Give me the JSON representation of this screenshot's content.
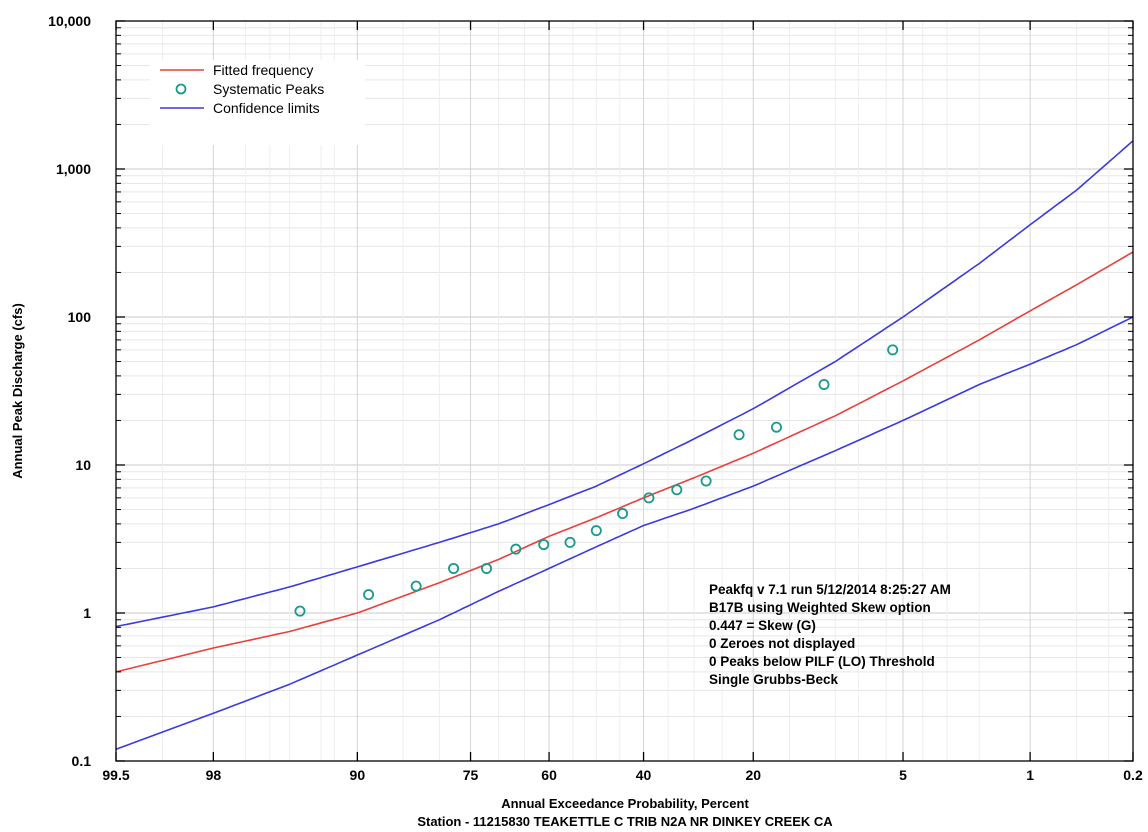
{
  "chart_data": {
    "type": "scatter",
    "x_scale": "normal-probability-exceedance",
    "y_scale": "log",
    "xlabel": "Annual Exceedance Probability, Percent",
    "xlabel2": "Station - 11215830  TEAKETTLE C TRIB N2A NR DINKEY CREEK CA",
    "ylabel": "Annual Peak Discharge (cfs)",
    "xlim": [
      99.5,
      0.2
    ],
    "ylim": [
      0.1,
      10000
    ],
    "x_ticks": [
      {
        "value": 99.5,
        "label": "99.5"
      },
      {
        "value": 98,
        "label": "98"
      },
      {
        "value": 90,
        "label": "90"
      },
      {
        "value": 75,
        "label": "75"
      },
      {
        "value": 60,
        "label": "60"
      },
      {
        "value": 40,
        "label": "40"
      },
      {
        "value": 20,
        "label": "20"
      },
      {
        "value": 5,
        "label": "5"
      },
      {
        "value": 1,
        "label": "1"
      },
      {
        "value": 0.2,
        "label": "0.2"
      }
    ],
    "y_ticks": [
      {
        "value": 0.1,
        "label": "0.1"
      },
      {
        "value": 1,
        "label": "1"
      },
      {
        "value": 10,
        "label": "10"
      },
      {
        "value": 100,
        "label": "100"
      },
      {
        "value": 1000,
        "label": "1,000"
      },
      {
        "value": 10000,
        "label": "10,000"
      }
    ],
    "grid": true,
    "legend_position": "top-left",
    "legend": [
      {
        "label": "Fitted frequency",
        "kind": "line",
        "color": "#e8403a"
      },
      {
        "label": "Systematic Peaks",
        "kind": "marker",
        "color": "#1a9a8a"
      },
      {
        "label": "Confidence limits",
        "kind": "line",
        "color": "#3a3ae0"
      }
    ],
    "series": [
      {
        "name": "Fitted frequency",
        "kind": "line",
        "color": "#e8403a",
        "x": [
          99.5,
          98,
          95,
          90,
          80,
          70,
          60,
          50,
          40,
          30,
          20,
          10,
          5,
          2,
          1,
          0.5,
          0.2
        ],
        "y": [
          0.4,
          0.58,
          0.75,
          1.0,
          1.6,
          2.3,
          3.3,
          4.4,
          6.0,
          8.2,
          12.0,
          21.5,
          37.0,
          70.0,
          110.0,
          165.0,
          275.0
        ]
      },
      {
        "name": "Confidence limits",
        "kind": "line",
        "color": "#3a3ae0",
        "x": [
          99.5,
          98,
          95,
          90,
          80,
          70,
          60,
          50,
          40,
          30,
          20,
          10,
          5,
          2,
          1,
          0.5,
          0.2
        ],
        "y": [
          0.81,
          1.1,
          1.5,
          2.05,
          3.0,
          4.0,
          5.4,
          7.2,
          10.2,
          15.0,
          24.0,
          50.0,
          100.0,
          230.0,
          420.0,
          720.0,
          1550.0
        ]
      },
      {
        "name": "Confidence limits",
        "kind": "line",
        "color": "#3a3ae0",
        "x": [
          99.5,
          98,
          95,
          90,
          80,
          70,
          60,
          50,
          40,
          30,
          20,
          10,
          5,
          2,
          1,
          0.5,
          0.2
        ],
        "y": [
          0.12,
          0.21,
          0.33,
          0.52,
          0.9,
          1.4,
          2.0,
          2.8,
          3.9,
          5.1,
          7.2,
          12.5,
          20.0,
          35.0,
          48.0,
          65.0,
          100.0
        ]
      },
      {
        "name": "Systematic Peaks",
        "kind": "marker",
        "color": "#1a9a8a",
        "x": [
          94.4,
          88.9,
          83.3,
          77.8,
          72.2,
          66.7,
          61.1,
          55.6,
          50.0,
          44.4,
          38.9,
          33.3,
          27.8,
          22.2,
          16.7,
          11.1,
          5.6
        ],
        "y": [
          1.03,
          1.33,
          1.52,
          2.0,
          2.0,
          2.7,
          2.9,
          3.0,
          3.6,
          4.7,
          6.0,
          6.8,
          7.8,
          16.0,
          18.0,
          35.0,
          60.0
        ]
      }
    ],
    "annotations": [
      "Peakfq v 7.1 run 5/12/2014 8:25:27 AM",
      "B17B using Weighted Skew option",
      "0.447 = Skew (G)",
      "0 Zeroes not displayed",
      "0 Peaks below PILF (LO) Threshold",
      "Single Grubbs-Beck"
    ]
  }
}
